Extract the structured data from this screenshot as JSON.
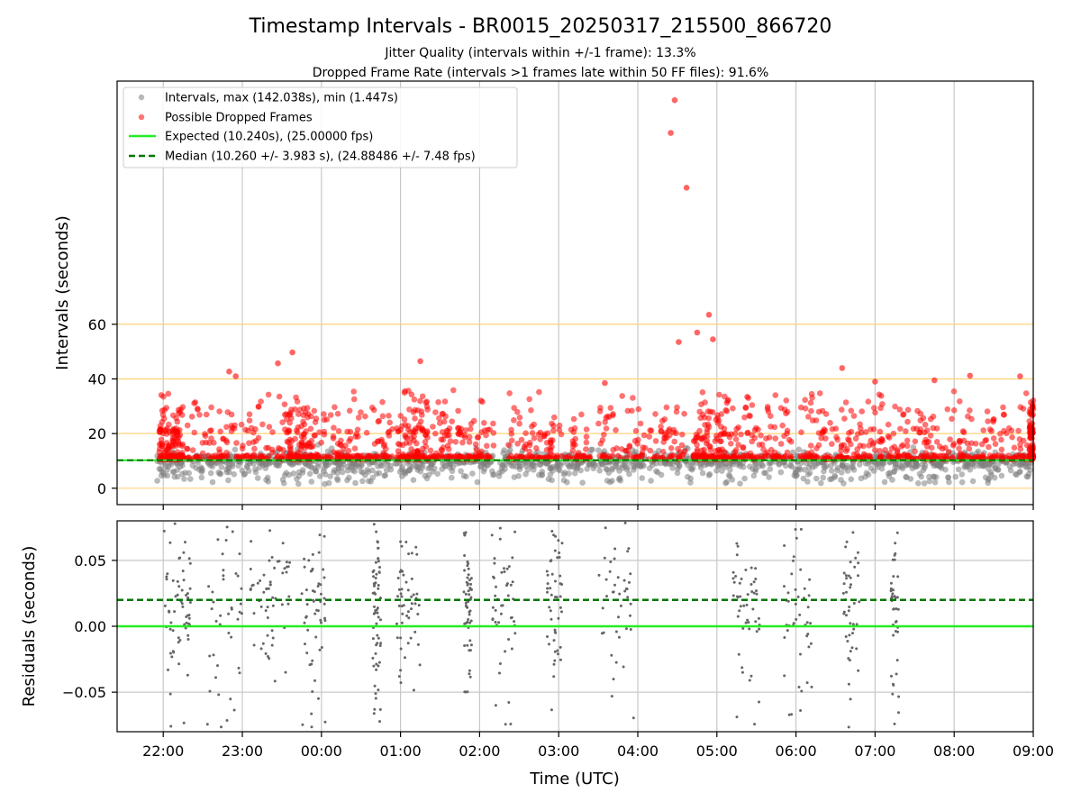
{
  "title": "Timestamp Intervals - BR0015_20250317_215500_866720",
  "subtitle_1": "Jitter Quality (intervals within +/-1 frame): 13.3%",
  "subtitle_2": "Dropped Frame Rate (intervals >1 frames late within 50 FF files): 91.6%",
  "colors": {
    "intervals": "#808080",
    "dropped": "#ff0000",
    "expected": "#22ee22",
    "median": "#007700",
    "grid": "#c8c8c8",
    "hline": "#ffd27a"
  },
  "chart_data": [
    {
      "type": "scatter",
      "panel": "intervals",
      "ylabel": "Intervals (seconds)",
      "xlim": [
        "21:25",
        "09:00"
      ],
      "ylim": [
        -6,
        149
      ],
      "yticks": [
        0,
        20,
        40,
        60
      ],
      "horizontal_gridlines": [
        0,
        20,
        40,
        60
      ],
      "vertical_grid": true,
      "legend_placement": "upper-left",
      "legend": {
        "intervals": "Intervals, max (142.038s), min (1.447s)",
        "dropped": "Possible Dropped Frames",
        "expected": "Expected (10.240s), (25.00000 fps)",
        "median": "Median (10.260 +/- 3.983 s), (24.88486 +/- 7.48 fps)"
      },
      "expected_value": 10.24,
      "median_value": 10.26,
      "dropped_outliers": [
        {
          "x": "04:28",
          "y": 142.0
        },
        {
          "x": "04:25",
          "y": 130.0
        },
        {
          "x": "04:37",
          "y": 110.0
        },
        {
          "x": "04:54",
          "y": 63.5
        },
        {
          "x": "04:57",
          "y": 54.5
        },
        {
          "x": "04:45",
          "y": 57.0
        },
        {
          "x": "04:31",
          "y": 53.5
        },
        {
          "x": "23:38",
          "y": 49.7
        },
        {
          "x": "01:15",
          "y": 46.5
        },
        {
          "x": "06:35",
          "y": 44.0
        },
        {
          "x": "23:27",
          "y": 45.7
        },
        {
          "x": "22:50",
          "y": 42.7
        },
        {
          "x": "22:55",
          "y": 41.0
        },
        {
          "x": "08:12",
          "y": 41.2
        },
        {
          "x": "08:50",
          "y": 41.0
        },
        {
          "x": "07:45",
          "y": 39.5
        },
        {
          "x": "03:35",
          "y": 38.5
        },
        {
          "x": "07:00",
          "y": 39.0
        }
      ],
      "dense_clusters_note": "Thousands of red and grey points concentrated between 0 and 35 seconds across the full time range"
    },
    {
      "type": "scatter",
      "panel": "residuals",
      "ylabel": "Residuals (seconds)",
      "xlabel": "Time (UTC)",
      "xlim": [
        "21:25",
        "09:00"
      ],
      "ylim": [
        -0.08,
        0.08
      ],
      "yticks": [
        -0.05,
        0.0,
        0.05
      ],
      "ytick_labels": [
        "−0.05",
        "0.00",
        "0.05"
      ],
      "expected_residual": 0.0,
      "median_residual": 0.02,
      "vertical_grid": true,
      "xticks": [
        "22:00",
        "23:00",
        "00:00",
        "01:00",
        "02:00",
        "03:00",
        "04:00",
        "05:00",
        "06:00",
        "07:00",
        "08:00",
        "09:00"
      ]
    }
  ]
}
